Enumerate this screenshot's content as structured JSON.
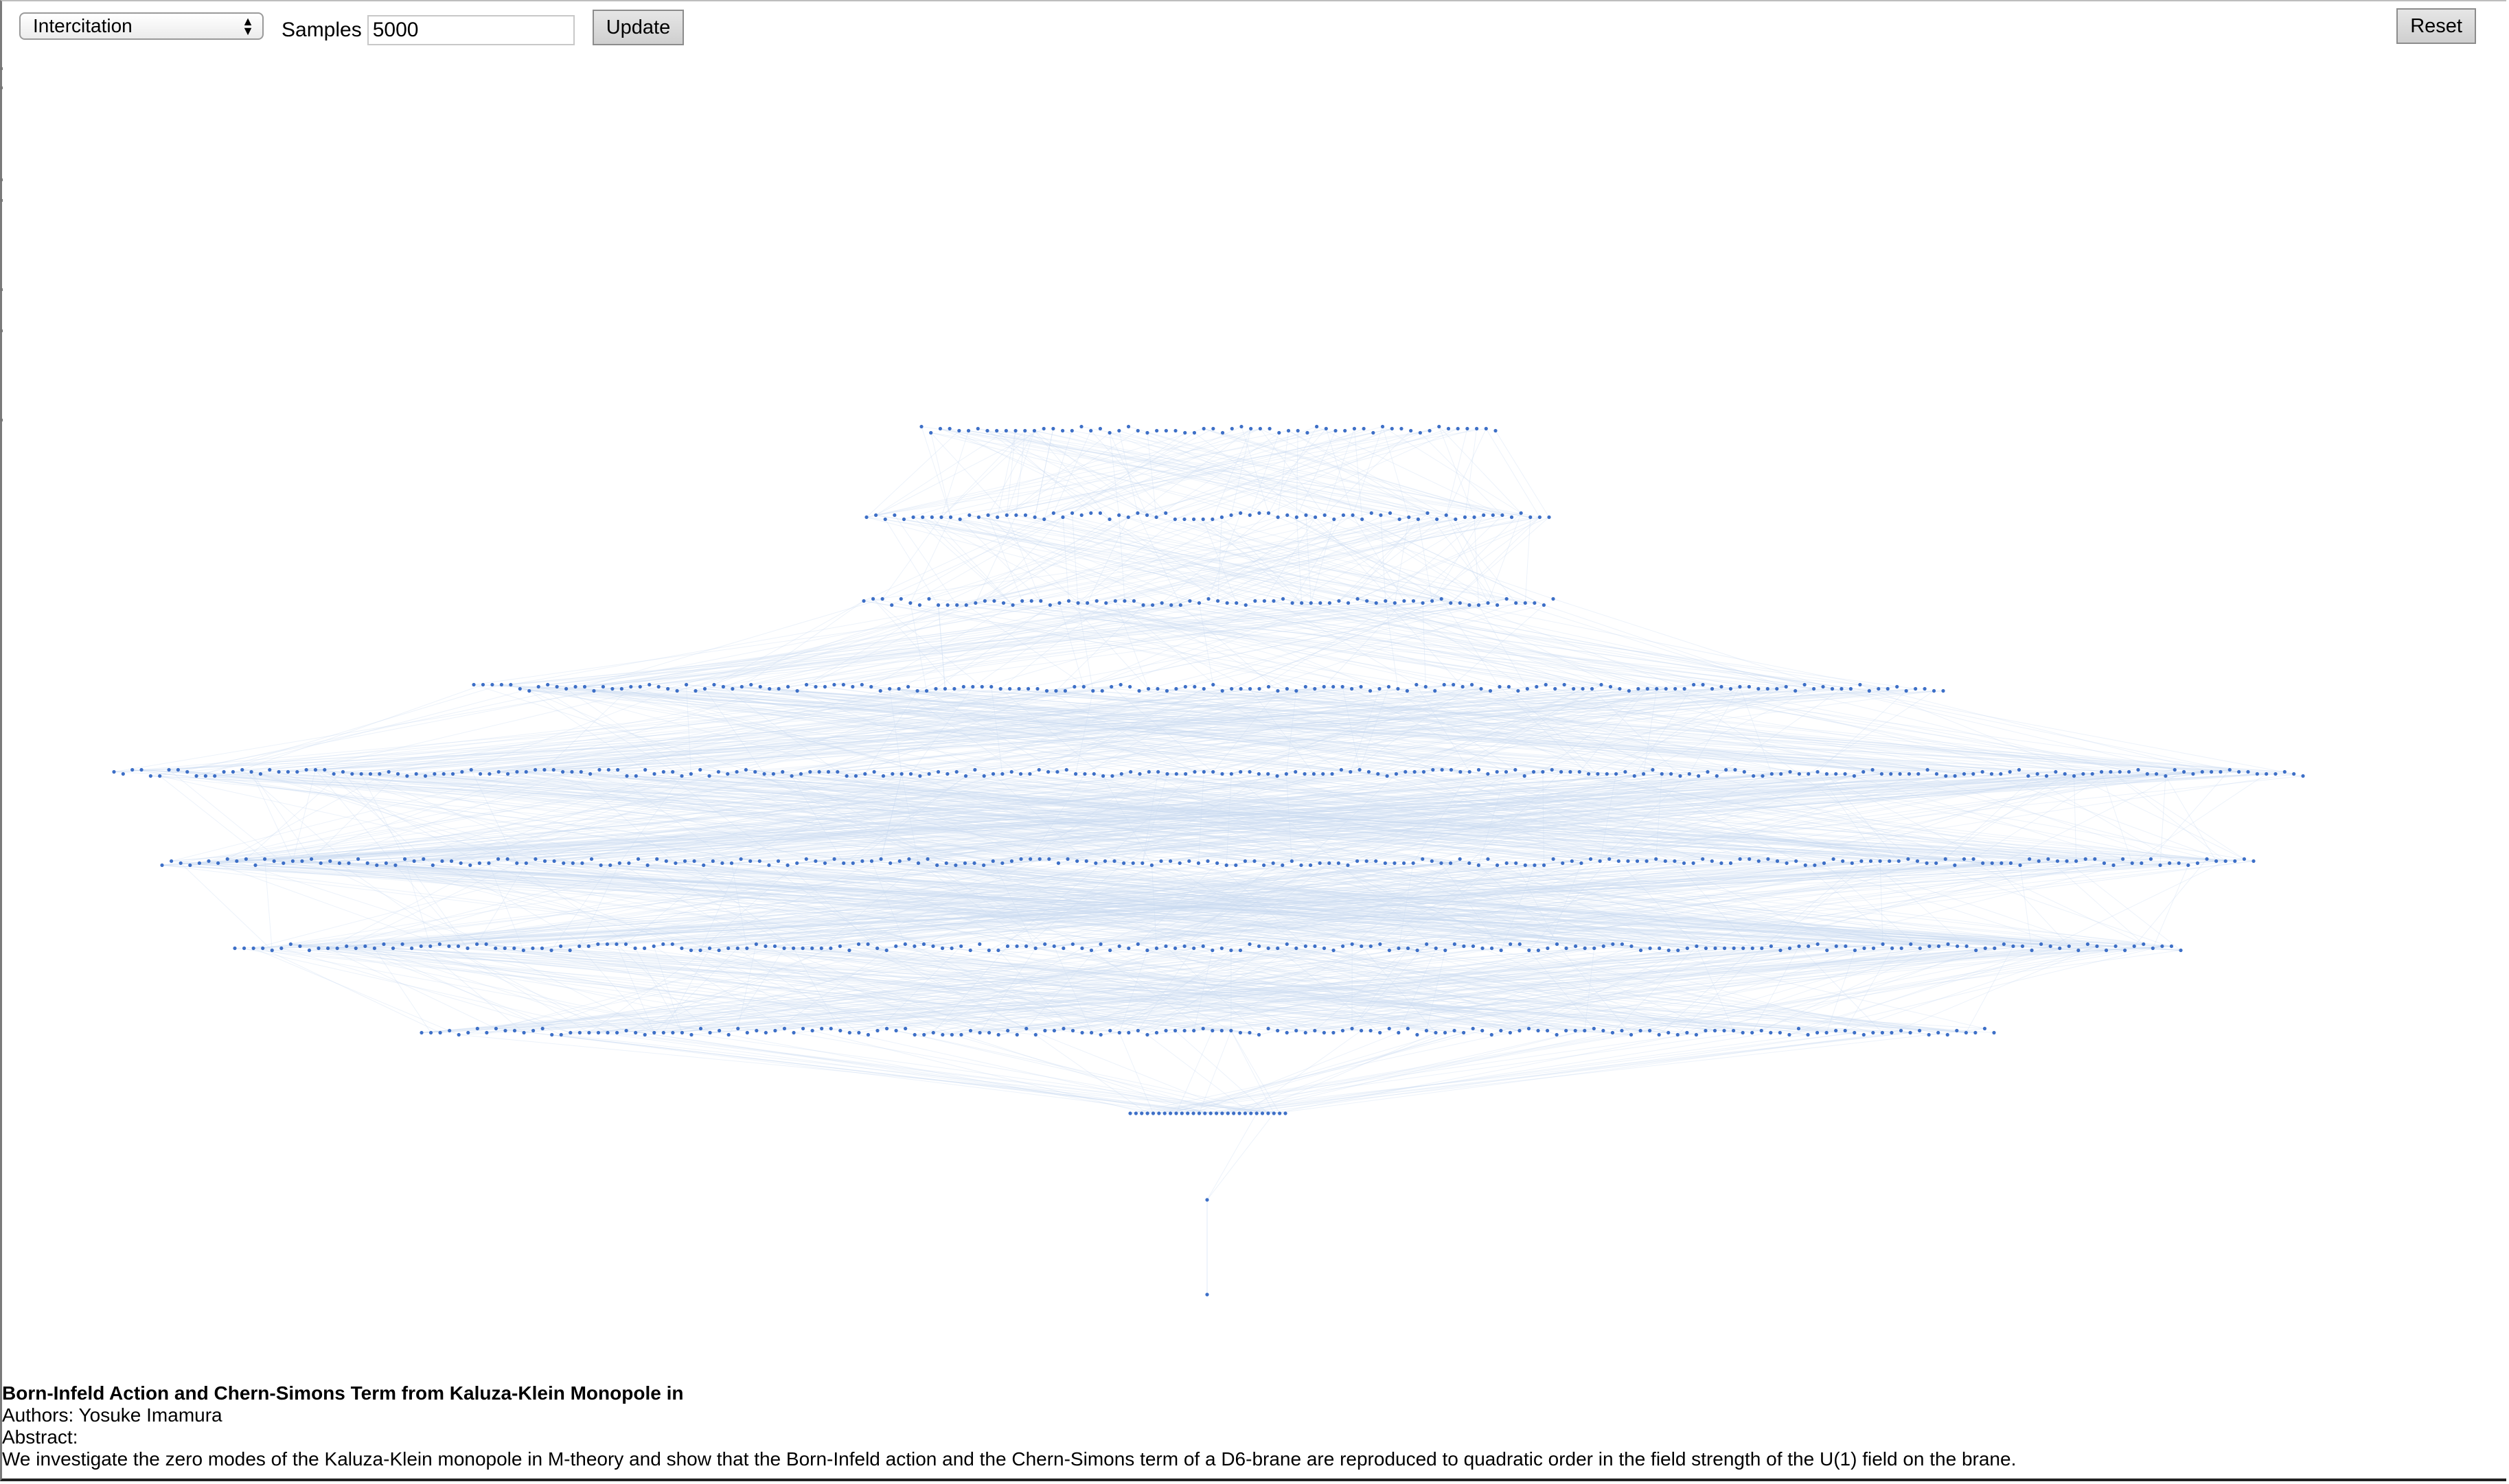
{
  "toolbar": {
    "dataset_select": {
      "selected": "Intercitation",
      "icon": "up-down-chevron-icon"
    },
    "samples_label": "Samples",
    "samples_value": "5000",
    "update_label": "Update",
    "reset_label": "Reset"
  },
  "graph": {
    "node_color": "#3d6fc7",
    "edge_color": "#c9d9f0",
    "layers": [
      {
        "nodes": 62
      },
      {
        "nodes": 74
      },
      {
        "nodes": 75
      },
      {
        "nodes": 160
      },
      {
        "nodes": 240
      },
      {
        "nodes": 225
      },
      {
        "nodes": 210
      },
      {
        "nodes": 170
      },
      {
        "nodes": 28
      },
      {
        "nodes": 1
      },
      {
        "nodes": 1
      }
    ]
  },
  "paper": {
    "title": "Born-Infeld Action and Chern-Simons Term from Kaluza-Klein Monopole in",
    "authors": "Authors: Yosuke Imamura",
    "abstract_label": "Abstract:",
    "abstract": "We investigate the zero modes of the Kaluza-Klein monopole in M-theory and show that the Born-Infeld action and the Chern-Simons term of a D6-brane are reproduced to quadratic order in the field strength of the U(1) field on the brane."
  }
}
